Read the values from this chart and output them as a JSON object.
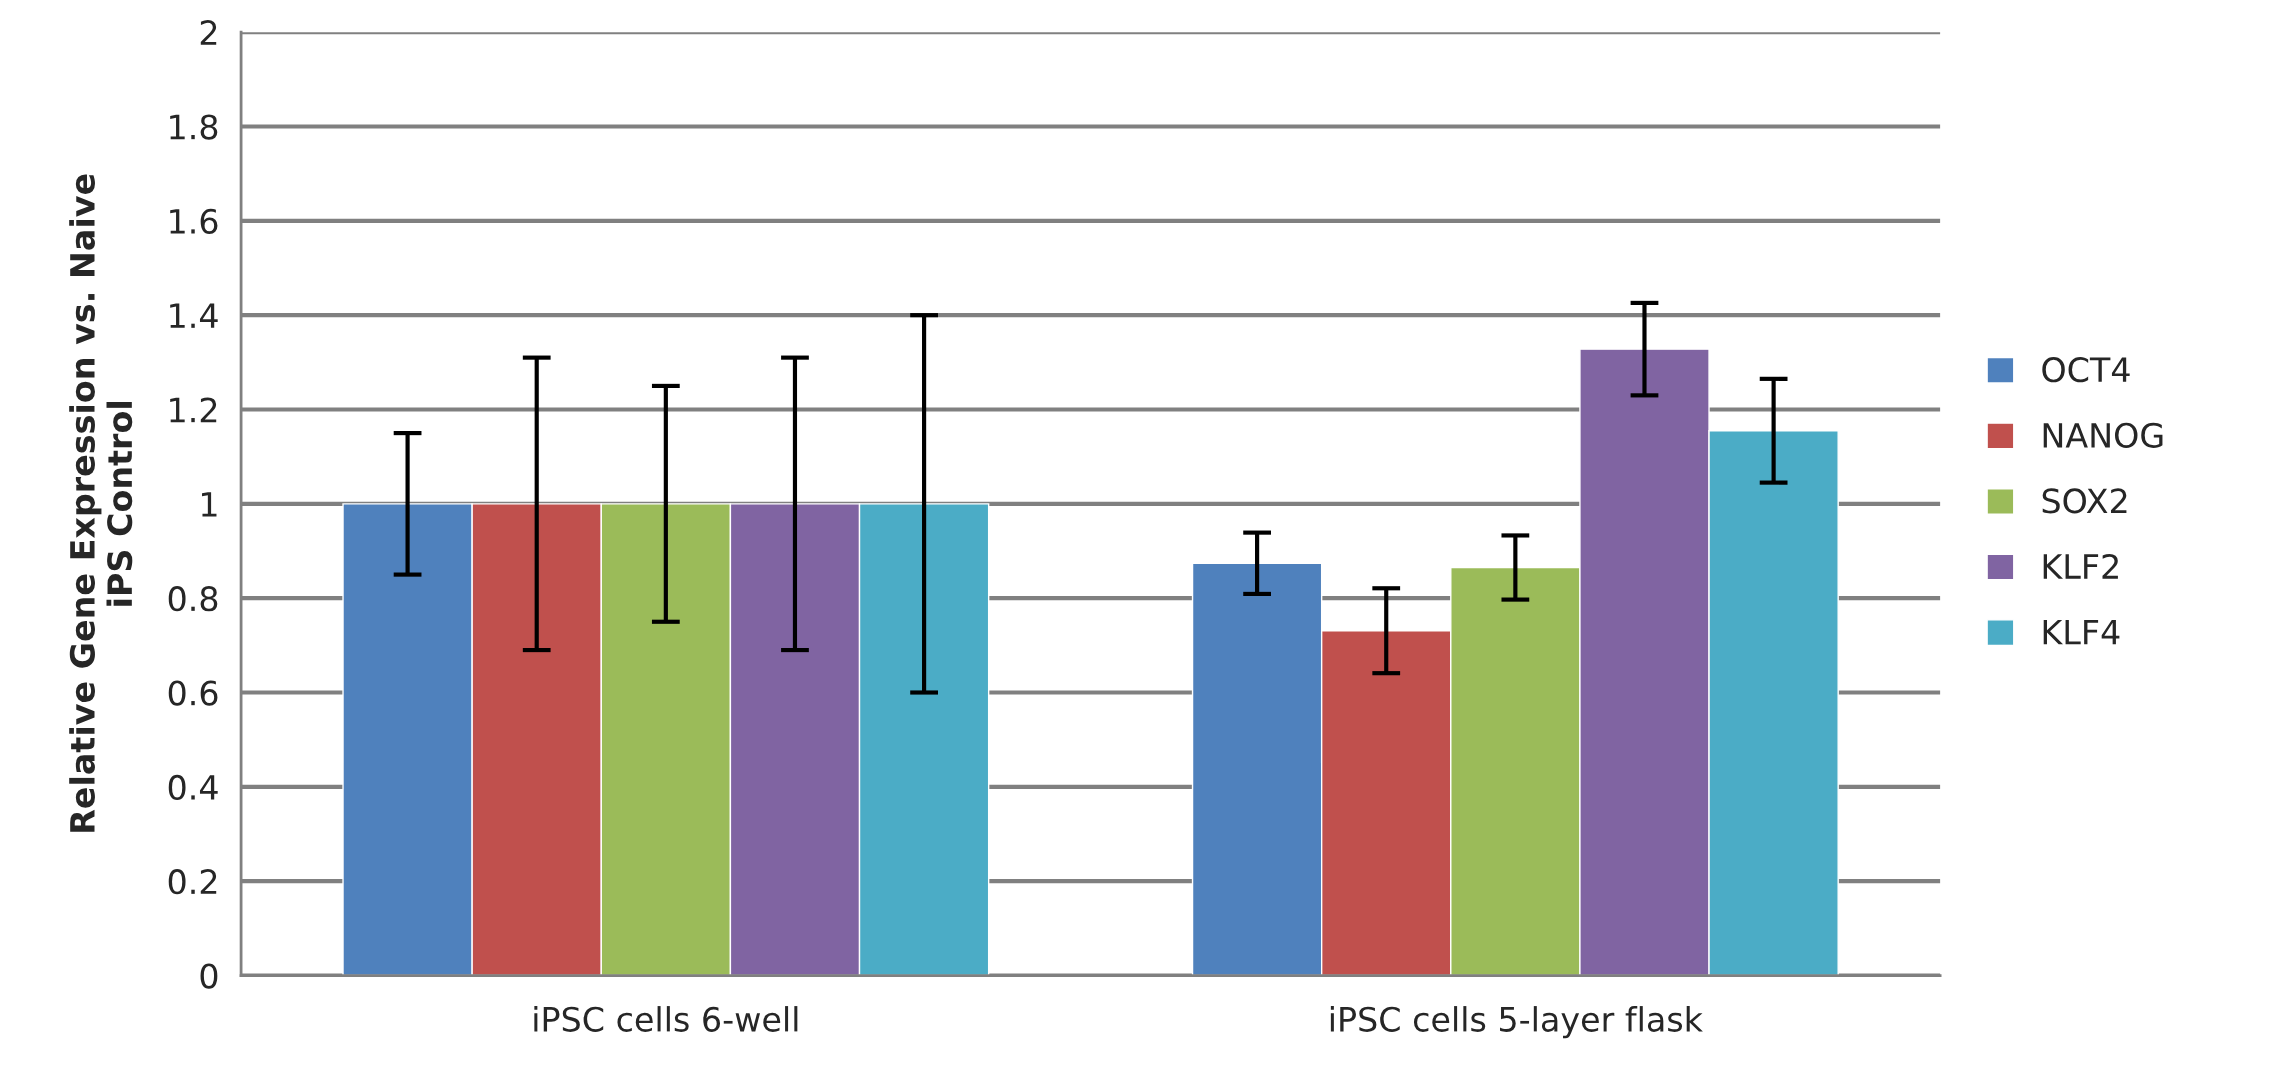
{
  "chart_data": {
    "type": "bar",
    "ylabel": "Relative Gene Expression vs. Naive\niPS Control",
    "categories": [
      "iPSC cells 6-well",
      "iPSC cells 5-layer flask"
    ],
    "series": [
      {
        "name": "OCT4",
        "color": "#4f81bd",
        "values": [
          1.0,
          0.874
        ],
        "errors": [
          0.15,
          0.065
        ]
      },
      {
        "name": "NANOG",
        "color": "#c0504d",
        "values": [
          1.0,
          0.731
        ],
        "errors": [
          0.31,
          0.09
        ]
      },
      {
        "name": "SOX2",
        "color": "#9bbb59",
        "values": [
          1.0,
          0.865
        ],
        "errors": [
          0.25,
          0.068
        ]
      },
      {
        "name": "KLF2",
        "color": "#8064a2",
        "values": [
          1.0,
          1.328
        ],
        "errors": [
          0.31,
          0.098
        ]
      },
      {
        "name": "KLF4",
        "color": "#4bacc6",
        "values": [
          1.0,
          1.155
        ],
        "errors": [
          0.4,
          0.11
        ]
      }
    ],
    "ylim": [
      0,
      2
    ],
    "yticks": [
      0,
      {
        "value": 0.2,
        "label": "0.2"
      },
      {
        "value": 0.4,
        "label": "0.4"
      },
      {
        "value": 0.6,
        "label": "0.6"
      },
      {
        "value": 0.8,
        "label": "0.8"
      },
      1,
      {
        "value": 1.2,
        "label": "1.2"
      },
      {
        "value": 1.4,
        "label": "1.4"
      },
      {
        "value": 1.6,
        "label": "1.6"
      },
      {
        "value": 1.8,
        "label": "1.8"
      },
      2
    ],
    "grid": "y",
    "legend": "right"
  }
}
